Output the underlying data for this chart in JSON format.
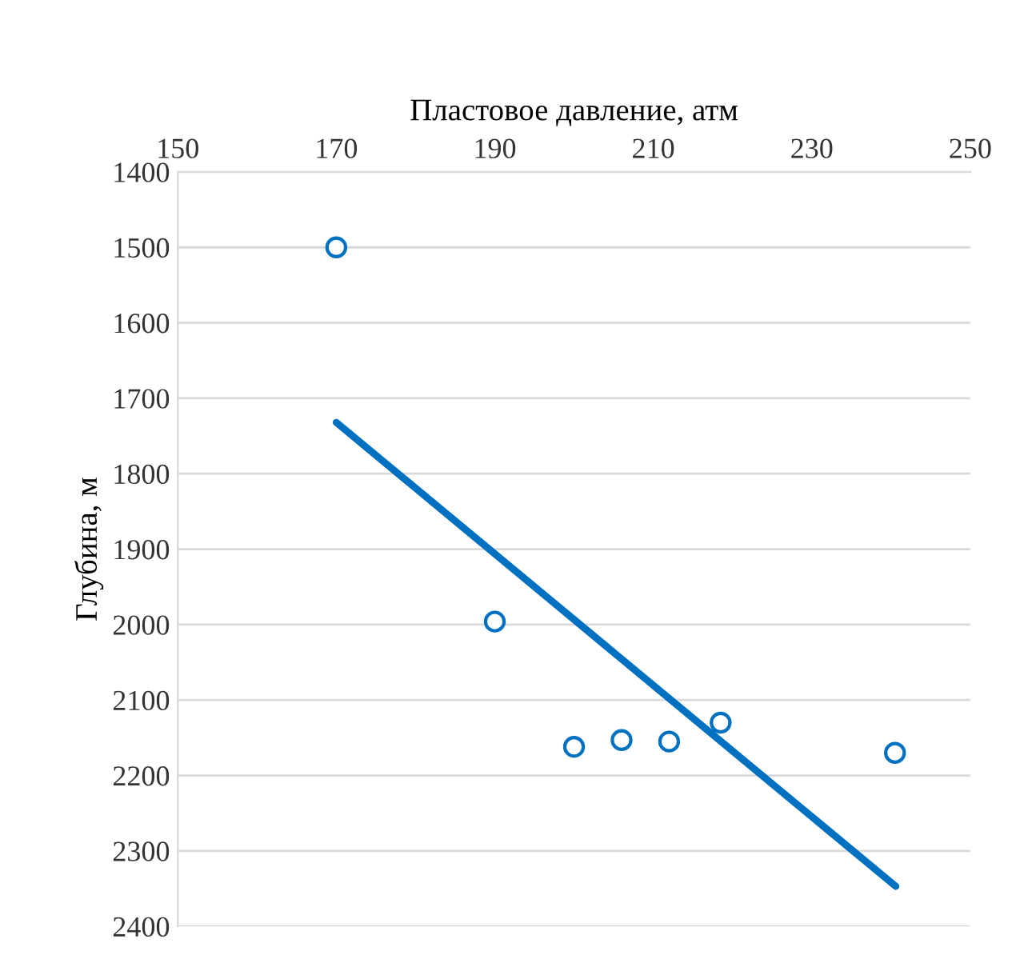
{
  "chart_data": {
    "type": "scatter",
    "xlabel": "Пластовое давление, атм",
    "ylabel": "Глубина, м",
    "xlim": [
      150,
      250
    ],
    "xticks": [
      150,
      170,
      190,
      210,
      230,
      250
    ],
    "ylim": [
      2400,
      1400
    ],
    "yticks": [
      1400,
      1500,
      1600,
      1700,
      1800,
      1900,
      2000,
      2100,
      2200,
      2300,
      2400
    ],
    "grid": "y",
    "legend": false,
    "series": [
      {
        "marker": "circle",
        "color": "#0070c0",
        "x": [
          170,
          190,
          200,
          206,
          212,
          218.5,
          240.5
        ],
        "values": [
          1500,
          1996,
          2162,
          2153,
          2155,
          2130,
          2170
        ]
      },
      {
        "type": "line",
        "color": "#0070c0",
        "line_style": "solid",
        "x": [
          170,
          240.6
        ],
        "values": [
          1732,
          2347
        ]
      }
    ]
  }
}
